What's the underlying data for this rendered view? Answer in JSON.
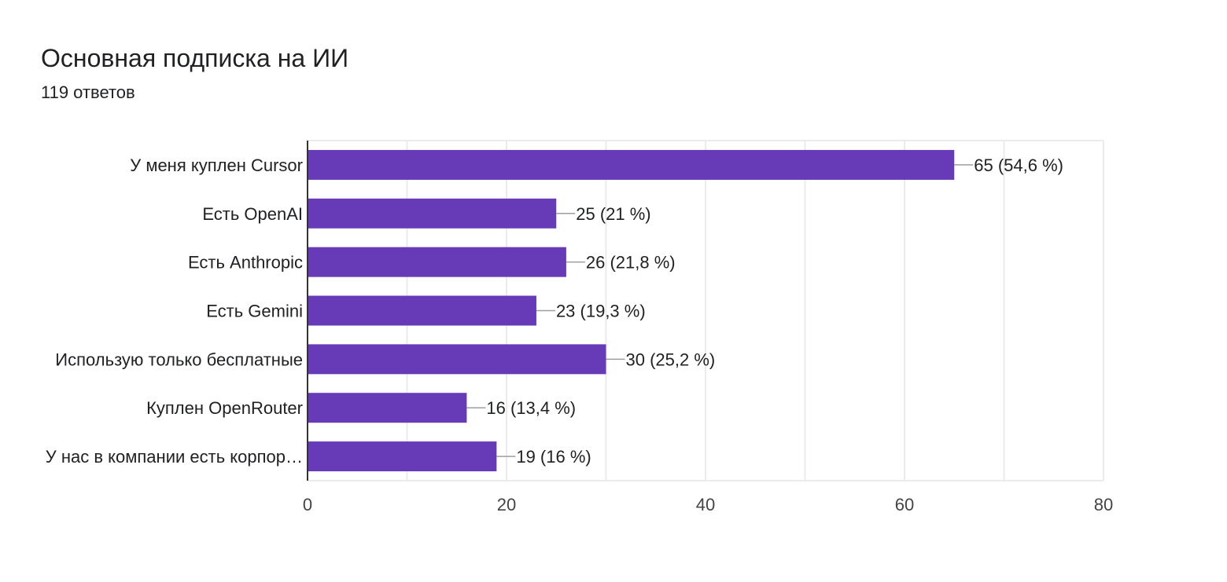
{
  "header": {
    "title": "Основная подписка на ИИ",
    "responses": "119 ответов"
  },
  "colors": {
    "bar": "#673ab7",
    "grid": "#ebebeb",
    "axis": "#333333",
    "leader": "#9e9e9e"
  },
  "chart_data": {
    "type": "bar",
    "orientation": "horizontal",
    "title": "Основная подписка на ИИ",
    "categories": [
      "У меня куплен Cursor",
      "Есть OpenAI",
      "Есть Anthropic",
      "Есть Gemini",
      "Использую только бесплатные",
      "Куплен OpenRouter",
      "У нас в компании есть корпор…"
    ],
    "values": [
      65,
      25,
      26,
      23,
      30,
      16,
      19
    ],
    "value_labels": [
      "65 (54,6 %)",
      "25 (21 %)",
      "26 (21,8 %)",
      "23 (19,3 %)",
      "30 (25,2 %)",
      "16 (13,4 %)",
      "19 (16 %)"
    ],
    "xlim": [
      0,
      80
    ],
    "xticks": [
      0,
      20,
      40,
      60,
      80
    ],
    "xtick_labels": [
      "0",
      "20",
      "40",
      "60",
      "80"
    ],
    "xlabel": "",
    "ylabel": "",
    "grid": true
  }
}
